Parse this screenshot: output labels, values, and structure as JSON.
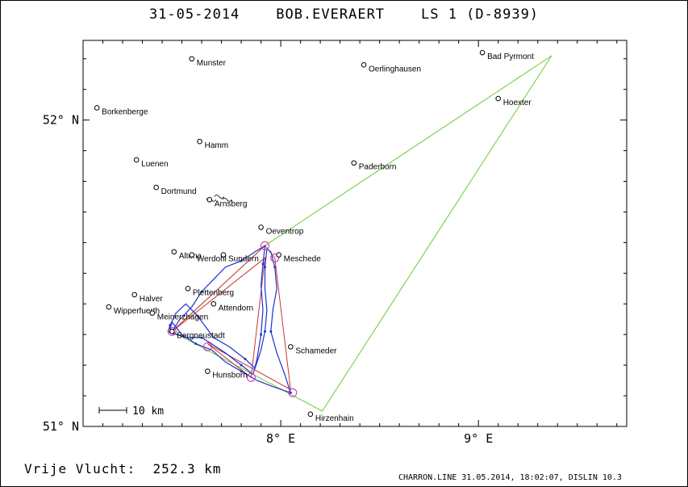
{
  "header": {
    "title": "31-05-2014    BOB.EVERAERT    LS 1 (D-8939)"
  },
  "axes": {
    "lat_labels": [
      {
        "lat": 52.0,
        "text": "52° N"
      },
      {
        "lat": 51.0,
        "text": "51° N"
      }
    ],
    "lon_labels": [
      {
        "lon": 8.0,
        "text": "8° E"
      },
      {
        "lon": 9.0,
        "text": "9° E"
      }
    ],
    "lon_range": [
      7.0,
      9.75
    ],
    "lat_range": [
      51.0,
      52.26
    ]
  },
  "scale_bar": {
    "label": "10 km"
  },
  "places": [
    {
      "name": "Munster",
      "lon": 7.55,
      "lat": 52.2
    },
    {
      "name": "Oerlinghausen",
      "lon": 8.42,
      "lat": 52.18
    },
    {
      "name": "Bad Pyrmont",
      "lon": 9.02,
      "lat": 52.22
    },
    {
      "name": "Borkenberge",
      "lon": 7.07,
      "lat": 52.04
    },
    {
      "name": "Hoexter",
      "lon": 9.1,
      "lat": 52.07
    },
    {
      "name": "Hamm",
      "lon": 7.59,
      "lat": 51.93
    },
    {
      "name": "Luenen",
      "lon": 7.27,
      "lat": 51.87
    },
    {
      "name": "Paderborn",
      "lon": 8.37,
      "lat": 51.86
    },
    {
      "name": "Dortmund",
      "lon": 7.37,
      "lat": 51.78
    },
    {
      "name": "Arnsberg",
      "lon": 7.64,
      "lat": 51.74
    },
    {
      "name": "Oeventrop",
      "lon": 7.9,
      "lat": 51.65
    },
    {
      "name": "Altena",
      "lon": 7.46,
      "lat": 51.57
    },
    {
      "name": "Werdohl",
      "lon": 7.55,
      "lat": 51.56
    },
    {
      "name": "Sundern",
      "lon": 7.71,
      "lat": 51.56
    },
    {
      "name": "Meschede",
      "lon": 7.99,
      "lat": 51.56
    },
    {
      "name": "Halver",
      "lon": 7.26,
      "lat": 51.43
    },
    {
      "name": "Plettenberg",
      "lon": 7.53,
      "lat": 51.45
    },
    {
      "name": "Wipperfuerth",
      "lon": 7.13,
      "lat": 51.39
    },
    {
      "name": "Attendorn",
      "lon": 7.66,
      "lat": 51.4
    },
    {
      "name": "Meinerzhagen",
      "lon": 7.35,
      "lat": 51.37
    },
    {
      "name": "Bergneustadt",
      "lon": 7.45,
      "lat": 51.31
    },
    {
      "name": "Schameder",
      "lon": 8.05,
      "lat": 51.26
    },
    {
      "name": "Hunsborn",
      "lon": 7.63,
      "lat": 51.18
    },
    {
      "name": "Hirzenhain",
      "lon": 8.15,
      "lat": 51.04
    }
  ],
  "declared_task": [
    {
      "lon": 7.45,
      "lat": 51.31
    },
    {
      "lon": 7.92,
      "lat": 51.59
    },
    {
      "lon": 9.37,
      "lat": 52.21
    },
    {
      "lon": 8.21,
      "lat": 51.05
    },
    {
      "lon": 7.45,
      "lat": 51.31
    }
  ],
  "flown_legs": [
    {
      "lon": 7.45,
      "lat": 51.31
    },
    {
      "lon": 7.92,
      "lat": 51.59
    },
    {
      "lon": 7.97,
      "lat": 51.55
    },
    {
      "lon": 8.05,
      "lat": 51.12
    },
    {
      "lon": 7.63,
      "lat": 51.27
    },
    {
      "lon": 7.85,
      "lat": 51.16
    },
    {
      "lon": 7.92,
      "lat": 51.55
    },
    {
      "lon": 7.45,
      "lat": 51.31
    }
  ],
  "turnpoint_circles": [
    {
      "lon": 7.92,
      "lat": 51.59
    },
    {
      "lon": 7.97,
      "lat": 51.55
    },
    {
      "lon": 8.06,
      "lat": 51.11
    },
    {
      "lon": 7.85,
      "lat": 51.16
    },
    {
      "lon": 7.63,
      "lat": 51.26
    },
    {
      "lon": 7.45,
      "lat": 51.31
    }
  ],
  "flight_track": [
    {
      "lon": 7.45,
      "lat": 51.31
    },
    {
      "lon": 7.49,
      "lat": 51.35
    },
    {
      "lon": 7.55,
      "lat": 51.39
    },
    {
      "lon": 7.6,
      "lat": 51.44
    },
    {
      "lon": 7.66,
      "lat": 51.48
    },
    {
      "lon": 7.72,
      "lat": 51.52
    },
    {
      "lon": 7.8,
      "lat": 51.54
    },
    {
      "lon": 7.87,
      "lat": 51.57
    },
    {
      "lon": 7.92,
      "lat": 51.59
    },
    {
      "lon": 7.91,
      "lat": 51.53
    },
    {
      "lon": 7.9,
      "lat": 51.46
    },
    {
      "lon": 7.91,
      "lat": 51.38
    },
    {
      "lon": 7.9,
      "lat": 51.3
    },
    {
      "lon": 7.88,
      "lat": 51.22
    },
    {
      "lon": 7.86,
      "lat": 51.17
    },
    {
      "lon": 7.8,
      "lat": 51.2
    },
    {
      "lon": 7.72,
      "lat": 51.24
    },
    {
      "lon": 7.65,
      "lat": 51.27
    },
    {
      "lon": 7.6,
      "lat": 51.29
    },
    {
      "lon": 7.53,
      "lat": 51.29
    },
    {
      "lon": 7.47,
      "lat": 51.3
    },
    {
      "lon": 7.44,
      "lat": 51.32
    },
    {
      "lon": 7.45,
      "lat": 51.34
    },
    {
      "lon": 7.5,
      "lat": 51.3
    },
    {
      "lon": 7.57,
      "lat": 51.27
    },
    {
      "lon": 7.65,
      "lat": 51.25
    },
    {
      "lon": 7.72,
      "lat": 51.21
    },
    {
      "lon": 7.8,
      "lat": 51.18
    },
    {
      "lon": 7.88,
      "lat": 51.15
    },
    {
      "lon": 7.96,
      "lat": 51.13
    },
    {
      "lon": 8.05,
      "lat": 51.11
    },
    {
      "lon": 8.02,
      "lat": 51.17
    },
    {
      "lon": 7.98,
      "lat": 51.24
    },
    {
      "lon": 7.95,
      "lat": 51.31
    },
    {
      "lon": 7.96,
      "lat": 51.38
    },
    {
      "lon": 7.98,
      "lat": 51.45
    },
    {
      "lon": 7.97,
      "lat": 51.52
    },
    {
      "lon": 7.95,
      "lat": 51.57
    },
    {
      "lon": 7.93,
      "lat": 51.58
    },
    {
      "lon": 7.92,
      "lat": 51.52
    },
    {
      "lon": 7.92,
      "lat": 51.45
    },
    {
      "lon": 7.93,
      "lat": 51.38
    },
    {
      "lon": 7.92,
      "lat": 51.31
    },
    {
      "lon": 7.9,
      "lat": 51.25
    },
    {
      "lon": 7.87,
      "lat": 51.19
    },
    {
      "lon": 7.82,
      "lat": 51.22
    },
    {
      "lon": 7.74,
      "lat": 51.26
    },
    {
      "lon": 7.66,
      "lat": 51.29
    },
    {
      "lon": 7.58,
      "lat": 51.36
    },
    {
      "lon": 7.52,
      "lat": 51.4
    },
    {
      "lon": 7.47,
      "lat": 51.37
    },
    {
      "lon": 7.44,
      "lat": 51.33
    },
    {
      "lon": 7.43,
      "lat": 51.31
    },
    {
      "lon": 7.46,
      "lat": 51.3
    }
  ],
  "thermal_marks": [
    {
      "lon": 7.64,
      "lat": 51.74
    },
    {
      "lon": 7.68,
      "lat": 51.75
    },
    {
      "lon": 7.72,
      "lat": 51.74
    }
  ],
  "footer": {
    "distance_text": "Vrije Vlucht:  252.3 km",
    "credit": "CHARRON.LINE 31.05.2014, 18:02:07, DISLIN 10.3"
  },
  "colors": {
    "task": "#66cc33",
    "legs": "#cc3333",
    "track": "#1a33cc",
    "circles": "#cc33aa",
    "text": "#000000"
  }
}
